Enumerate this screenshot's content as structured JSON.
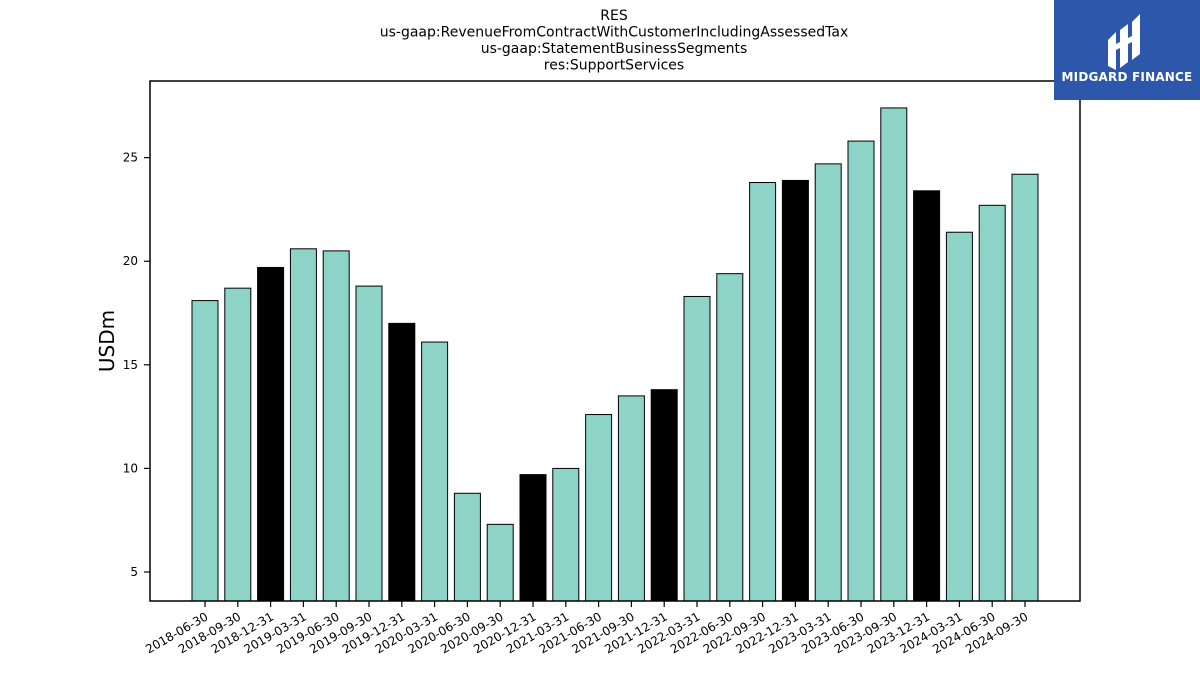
{
  "logo": {
    "text": "MIDGARD FINANCE"
  },
  "chart_data": {
    "type": "bar",
    "title": [
      "RES",
      "us-gaap:RevenueFromContractWithCustomerIncludingAssessedTax",
      "us-gaap:StatementBusinessSegments",
      "res:SupportServices"
    ],
    "xlabel": "",
    "ylabel": "USDm",
    "ylim": [
      3.6,
      28.7
    ],
    "yticks": [
      5,
      10,
      15,
      20,
      25
    ],
    "grid": false,
    "colors": {
      "default": "#8dd3c7",
      "highlight": "#000000",
      "edge": "#000000"
    },
    "categories": [
      "2018-06-30",
      "2018-09-30",
      "2018-12-31",
      "2019-03-31",
      "2019-06-30",
      "2019-09-30",
      "2019-12-31",
      "2020-03-31",
      "2020-06-30",
      "2020-09-30",
      "2020-12-31",
      "2021-03-31",
      "2021-06-30",
      "2021-09-30",
      "2021-12-31",
      "2022-03-31",
      "2022-06-30",
      "2022-09-30",
      "2022-12-31",
      "2023-03-31",
      "2023-06-30",
      "2023-09-30",
      "2023-12-31",
      "2024-03-31",
      "2024-06-30",
      "2024-09-30"
    ],
    "values": [
      18.1,
      18.7,
      19.7,
      20.6,
      20.5,
      18.8,
      17.0,
      16.1,
      8.8,
      7.3,
      9.7,
      10.0,
      12.6,
      13.5,
      13.8,
      18.3,
      19.4,
      23.8,
      23.9,
      24.7,
      25.8,
      27.4,
      23.4,
      21.4,
      22.7,
      24.2
    ],
    "highlight": [
      false,
      false,
      true,
      false,
      false,
      false,
      true,
      false,
      false,
      false,
      true,
      false,
      false,
      false,
      true,
      false,
      false,
      false,
      true,
      false,
      false,
      false,
      true,
      false,
      false,
      false
    ]
  }
}
